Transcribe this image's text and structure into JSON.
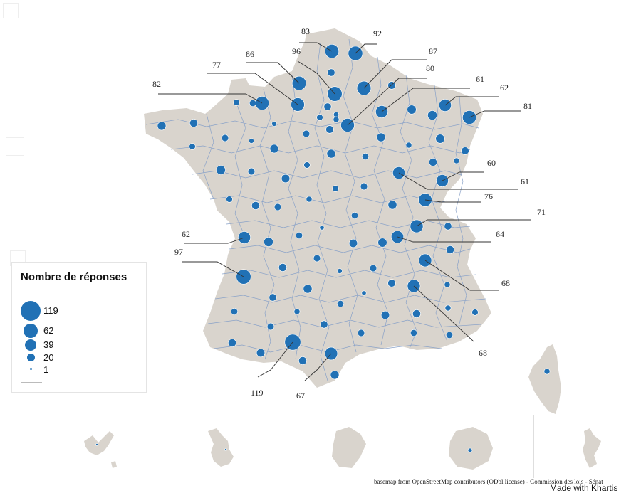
{
  "legend": {
    "title": "Nombre de réponses",
    "entries": [
      {
        "label": "119",
        "value": 119
      },
      {
        "label": "62",
        "value": 62
      },
      {
        "label": "39",
        "value": 39
      },
      {
        "label": "20",
        "value": 20
      },
      {
        "label": "1",
        "value": 1
      }
    ]
  },
  "callouts": {
    "c83": "83",
    "c92": "92",
    "c86": "86",
    "c96": "96",
    "c87": "87",
    "c77": "77",
    "c80": "80",
    "c82": "82",
    "c61a": "61",
    "c62a": "62",
    "c81": "81",
    "c60": "60",
    "c61b": "61",
    "c76": "76",
    "c71": "71",
    "c62b": "62",
    "c64": "64",
    "c97": "97",
    "c68a": "68",
    "c68b": "68",
    "c119": "119",
    "c67": "67"
  },
  "chart_data": {
    "type": "proportional-symbol-map",
    "title": "",
    "labeled_values": [
      83,
      92,
      86,
      96,
      87,
      77,
      80,
      82,
      61,
      62,
      81,
      60,
      61,
      76,
      71,
      62,
      64,
      97,
      68,
      68,
      119,
      67
    ],
    "legend_values": [
      119,
      62,
      39,
      20,
      1
    ],
    "overseas_insets": 5,
    "colors": {
      "bubble": "#2171b5",
      "land": "#d9d4cd",
      "borders": "#8aa2c8"
    }
  },
  "footer": {
    "attribution": "basemap from OpenStreetMap contributors (ODbl license) - Commission des lois - Sénat",
    "credit": "Made with Khartis"
  }
}
